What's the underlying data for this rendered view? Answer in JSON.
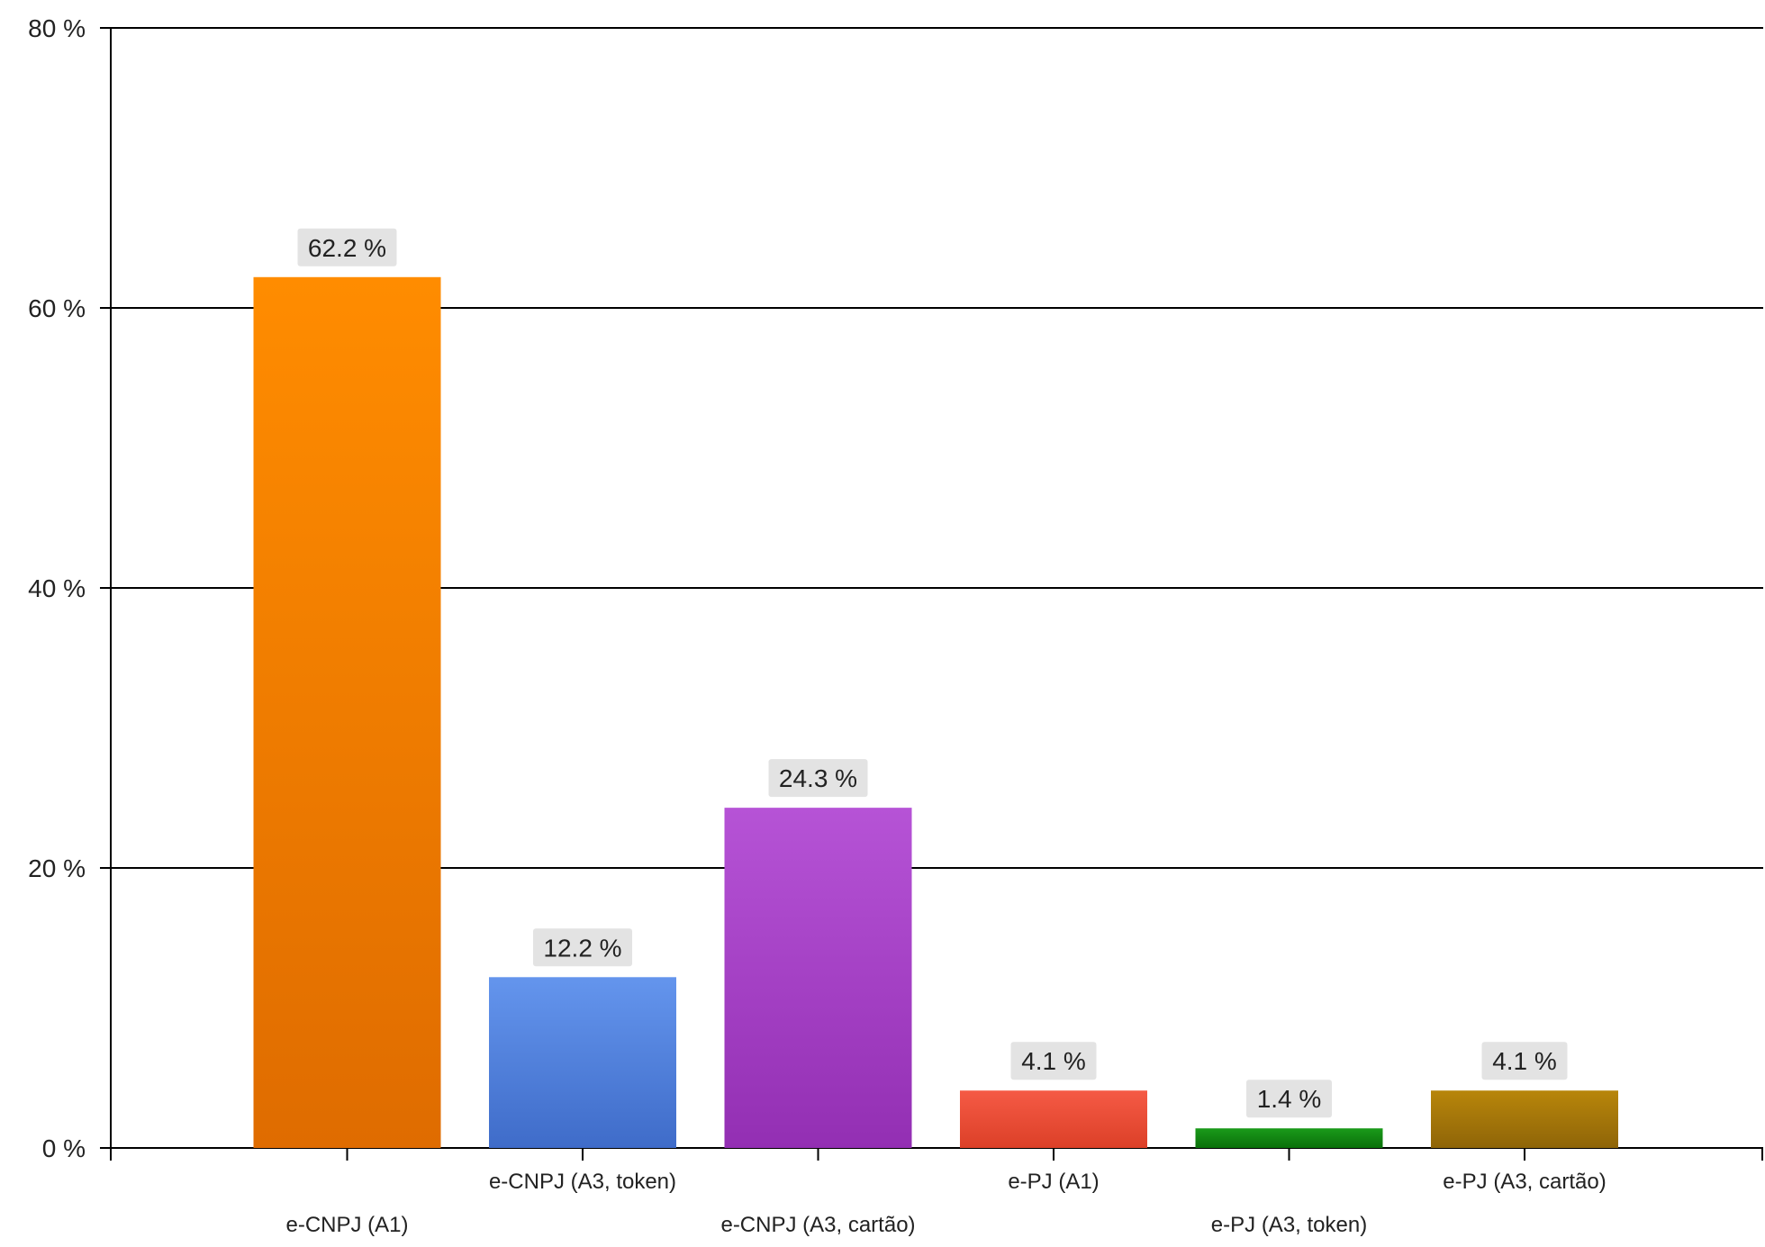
{
  "chart_data": {
    "type": "bar",
    "title": "",
    "xlabel": "",
    "ylabel": "",
    "ylim": [
      0,
      80
    ],
    "yticks": [
      0,
      20,
      40,
      60,
      80
    ],
    "ytick_labels": [
      "0 %",
      "20 %",
      "40 %",
      "60 %",
      "80 %"
    ],
    "grid": true,
    "legend": "none",
    "categories": [
      "e-CNPJ (A1)",
      "e-CNPJ (A3, token)",
      "e-CNPJ (A3, cartão)",
      "e-PJ (A1)",
      "e-PJ (A3, token)",
      "e-PJ (A3, cartão)"
    ],
    "values": [
      62.2,
      12.2,
      24.3,
      4.1,
      1.4,
      4.1
    ],
    "data_labels": [
      "62.2 %",
      "12.2 %",
      "24.3 %",
      "4.1 %",
      "1.4 %",
      "4.1 %"
    ],
    "colors": [
      [
        "#ff8c00",
        "#df6c00"
      ],
      [
        "#6495ed",
        "#3f6cc9"
      ],
      [
        "#b653d6",
        "#932fb3"
      ],
      [
        "#f55a45",
        "#dc4028"
      ],
      [
        "#1a9a1a",
        "#0a700a"
      ],
      [
        "#b8860b",
        "#8f6508"
      ]
    ]
  }
}
